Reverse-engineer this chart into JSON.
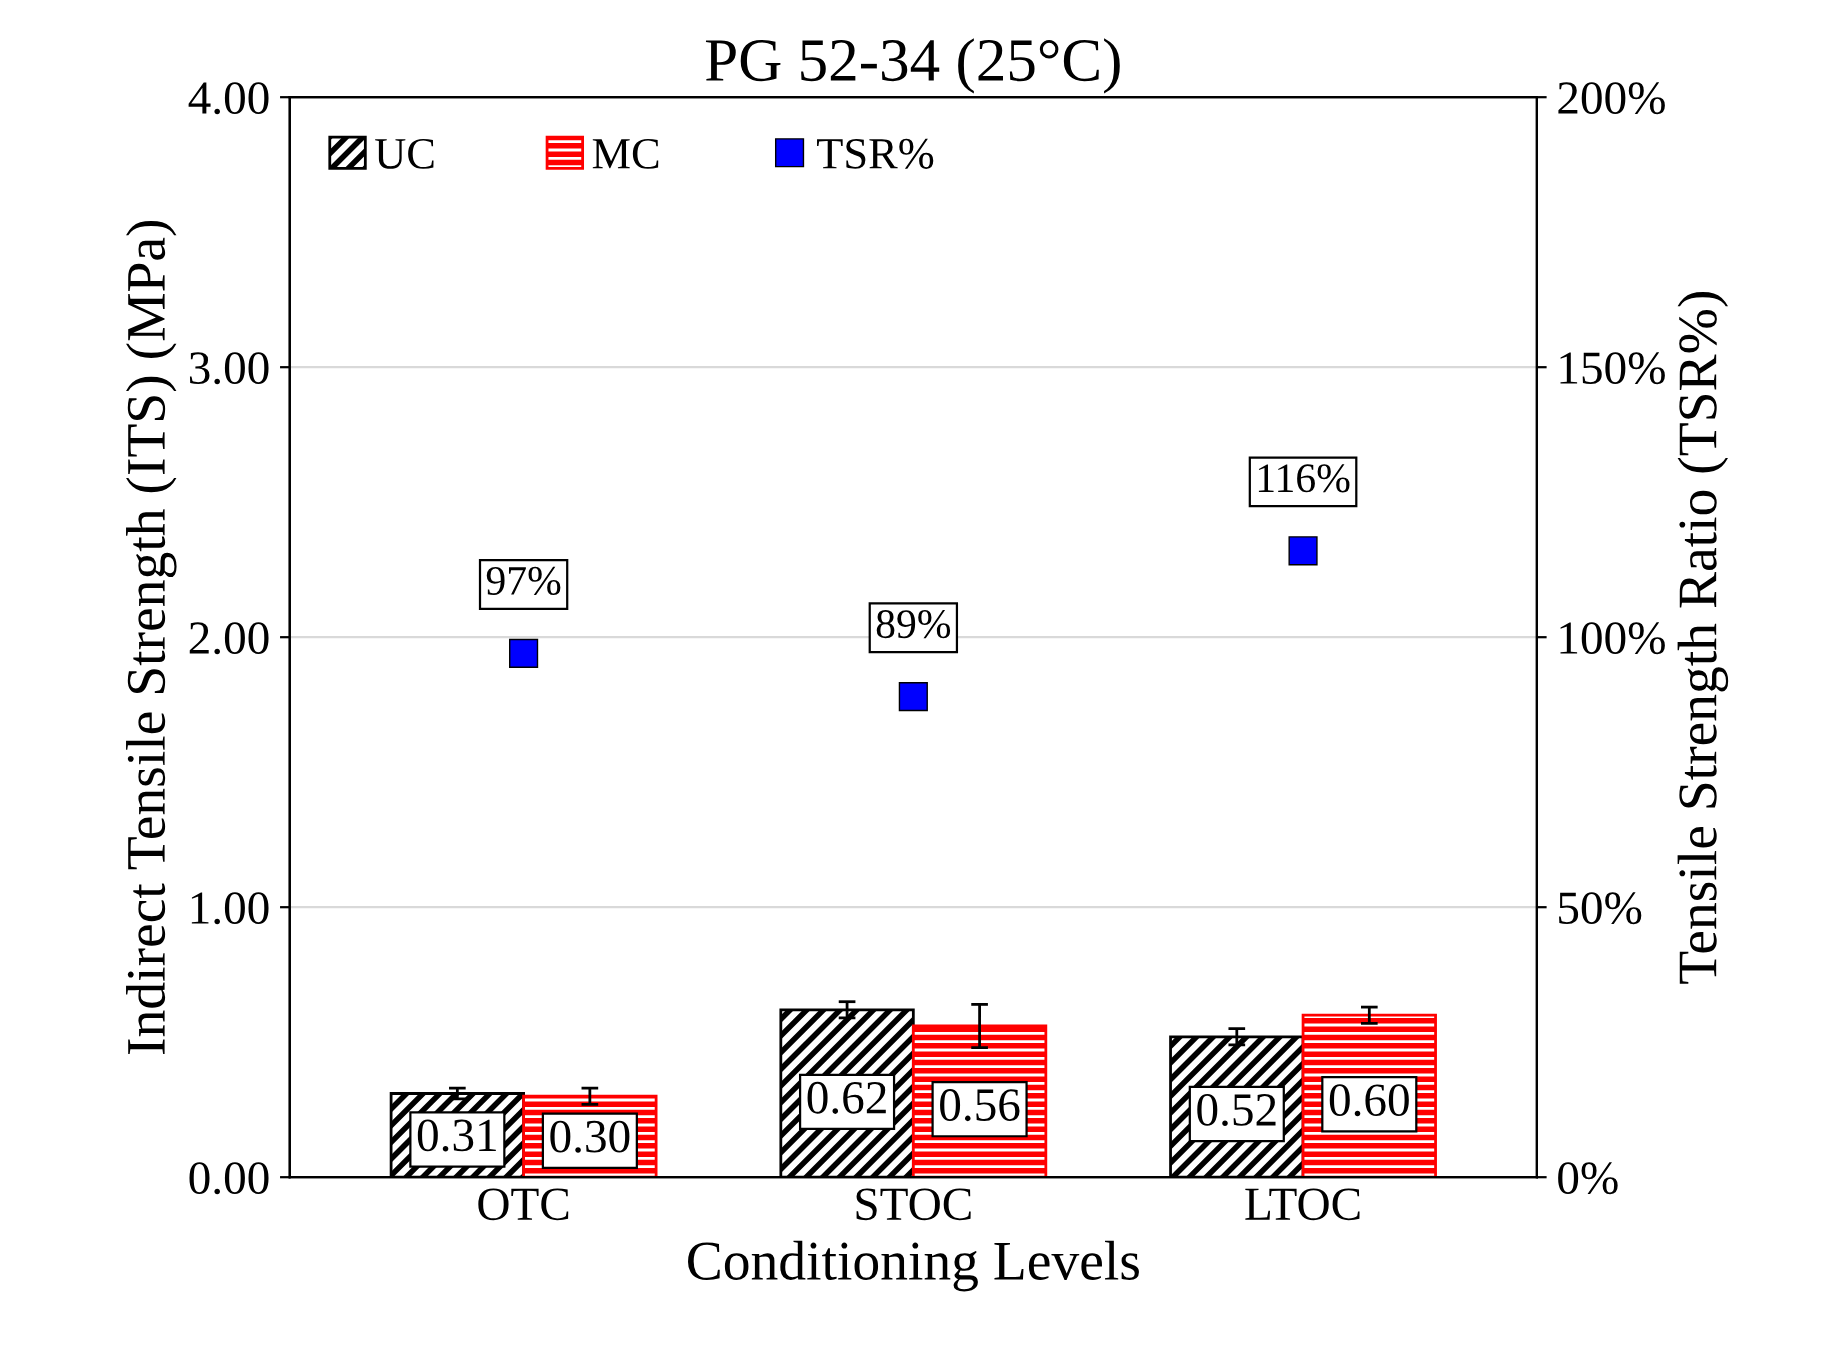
{
  "chart_data": {
    "type": "bar",
    "title": "PG 52-34 (25°C)",
    "xlabel": "Conditioning Levels",
    "ylabel": "Indirect Tensile Strength (ITS) (MPa)",
    "y2label": "Tensile Strength Ratio (TSR%)",
    "categories": [
      "OTC",
      "STOC",
      "LTOC"
    ],
    "series": [
      {
        "name": "UC",
        "color": "#000000",
        "values": [
          0.31,
          0.62,
          0.52
        ],
        "errors": [
          0.02,
          0.03,
          0.03
        ],
        "value_labels": [
          "0.31",
          "0.62",
          "0.52"
        ]
      },
      {
        "name": "MC",
        "color": "#ff0000",
        "values": [
          0.3,
          0.56,
          0.6
        ],
        "errors": [
          0.03,
          0.08,
          0.03
        ],
        "value_labels": [
          "0.30",
          "0.56",
          "0.60"
        ]
      },
      {
        "name": "TSR%",
        "type": "scatter",
        "axis": "y2",
        "color": "#0000ff",
        "marker": "square",
        "values": [
          97,
          89,
          116
        ],
        "value_labels": [
          "97%",
          "89%",
          "116%"
        ]
      }
    ],
    "ylim": [
      0,
      4
    ],
    "yticks": [
      {
        "value": 0,
        "label": "0.00"
      },
      {
        "value": 1,
        "label": "1.00"
      },
      {
        "value": 2,
        "label": "2.00"
      },
      {
        "value": 3,
        "label": "3.00"
      },
      {
        "value": 4,
        "label": "4.00"
      }
    ],
    "y2lim": [
      0,
      200
    ],
    "y2ticks": [
      {
        "value": 0,
        "label": "0%"
      },
      {
        "value": 50,
        "label": "50%"
      },
      {
        "value": 100,
        "label": "100%"
      },
      {
        "value": 150,
        "label": "150%"
      },
      {
        "value": 200,
        "label": "200%"
      }
    ],
    "grid": "y",
    "legend": "top left"
  }
}
